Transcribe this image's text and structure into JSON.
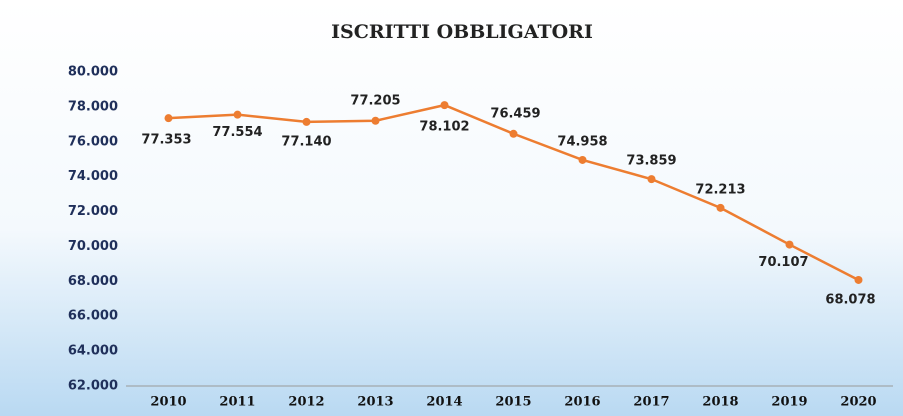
{
  "chart_data": {
    "type": "line",
    "title": "ISCRITTI OBBLIGATORI",
    "categories": [
      "2010",
      "2011",
      "2012",
      "2013",
      "2014",
      "2015",
      "2016",
      "2017",
      "2018",
      "2019",
      "2020"
    ],
    "series": [
      {
        "name": "Iscritti obbligatori",
        "color": "#ed7d31",
        "values": [
          77353,
          77554,
          77140,
          77205,
          78102,
          76459,
          74958,
          73859,
          72213,
          70107,
          68078
        ],
        "value_labels": [
          "77.353",
          "77.554",
          "77.140",
          "77.205",
          "78.102",
          "76.459",
          "74.958",
          "73.859",
          "72.213",
          "70.107",
          "68.078"
        ]
      }
    ],
    "ylim": [
      62000,
      80000
    ],
    "yticks": [
      {
        "value": 62000,
        "label": "62.000"
      },
      {
        "value": 64000,
        "label": "64.000"
      },
      {
        "value": 66000,
        "label": "66.000"
      },
      {
        "value": 68000,
        "label": "68.000"
      },
      {
        "value": 70000,
        "label": "70.000"
      },
      {
        "value": 72000,
        "label": "72.000"
      },
      {
        "value": 74000,
        "label": "74.000"
      },
      {
        "value": 76000,
        "label": "76.000"
      },
      {
        "value": 78000,
        "label": "78.000"
      },
      {
        "value": 80000,
        "label": "80.000"
      }
    ],
    "grid": false
  }
}
